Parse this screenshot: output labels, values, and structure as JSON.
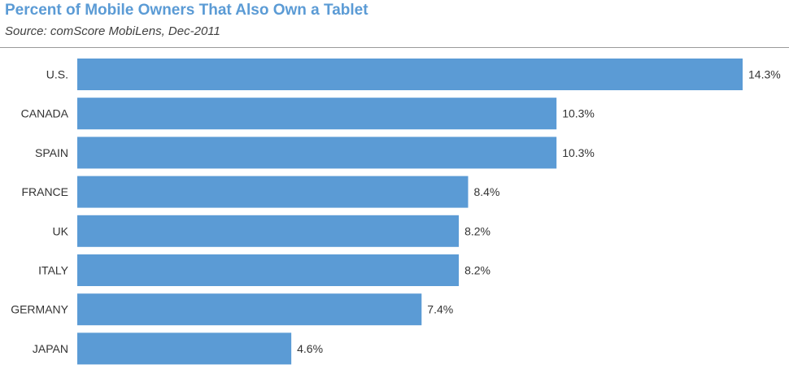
{
  "chart_data": {
    "type": "bar",
    "orientation": "horizontal",
    "title": "Percent of Mobile Owners That Also Own a Tablet",
    "subtitle": "Source: comScore MobiLens, Dec-2011",
    "categories": [
      "U.S.",
      "CANADA",
      "SPAIN",
      "FRANCE",
      "UK",
      "ITALY",
      "GERMANY",
      "JAPAN"
    ],
    "values": [
      14.3,
      10.3,
      10.3,
      8.4,
      8.2,
      8.2,
      7.4,
      4.6
    ],
    "value_labels": [
      "14.3%",
      "10.3%",
      "10.3%",
      "8.4%",
      "8.2%",
      "8.2%",
      "7.4%",
      "4.6%"
    ],
    "xlim": [
      0,
      14.3
    ],
    "grid": false,
    "bar_color": "#5b9bd5",
    "title_color": "#5b9bd5"
  }
}
